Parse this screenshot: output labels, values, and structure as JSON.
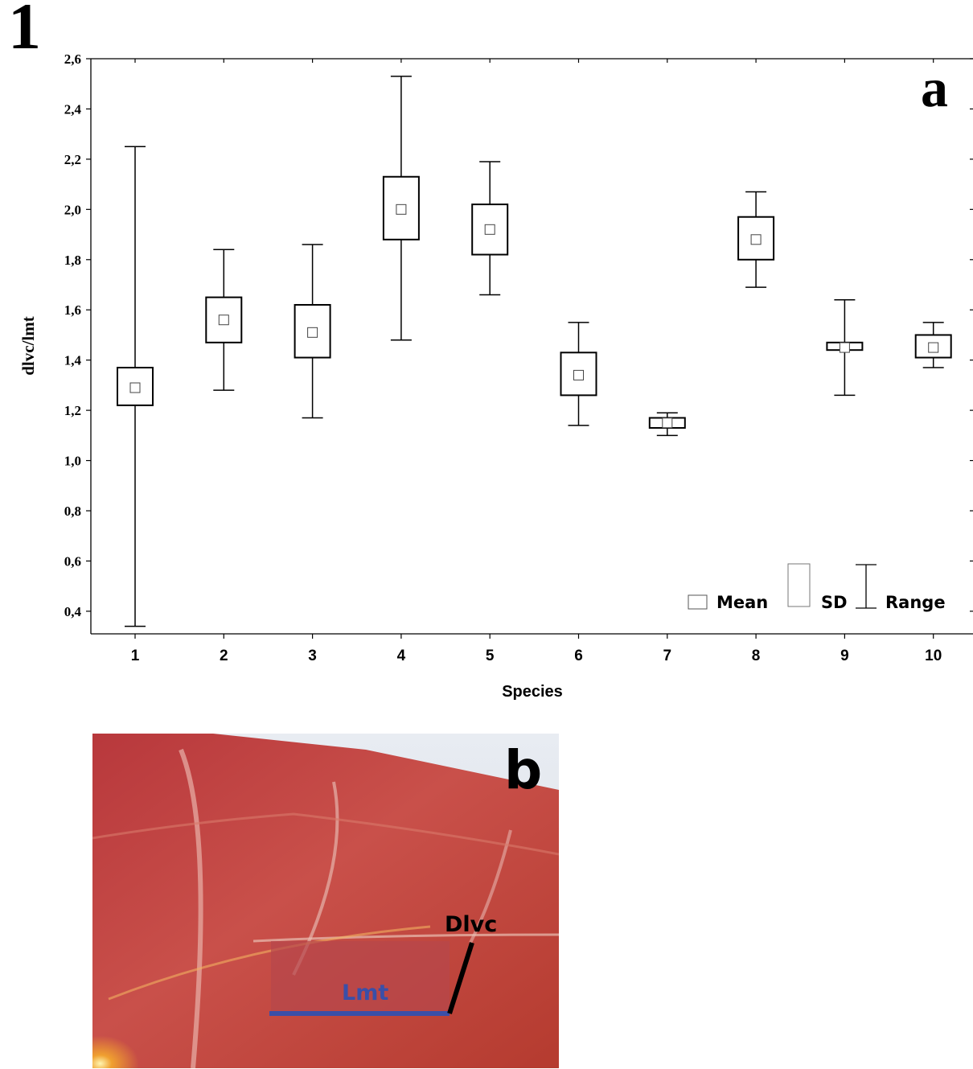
{
  "figure_number": "1",
  "panel_a_label": "a",
  "panel_b_label": "b",
  "chart_data": {
    "type": "box",
    "title": "",
    "xlabel": "Species",
    "ylabel": "dlvc/lmt",
    "categories": [
      "1",
      "2",
      "3",
      "4",
      "5",
      "6",
      "7",
      "8",
      "9",
      "10"
    ],
    "ylim": [
      0.31,
      2.6
    ],
    "yticks": [
      "0,4",
      "0,6",
      "0,8",
      "1,0",
      "1,2",
      "1,4",
      "1,6",
      "1,8",
      "2,0",
      "2,2",
      "2,4",
      "2,6"
    ],
    "ytick_values": [
      0.4,
      0.6,
      0.8,
      1.0,
      1.2,
      1.4,
      1.6,
      1.8,
      2.0,
      2.2,
      2.4,
      2.6
    ],
    "series": [
      {
        "category": "1",
        "mean": 1.29,
        "sd_low": 1.22,
        "sd_high": 1.37,
        "min": 0.34,
        "max": 2.25
      },
      {
        "category": "2",
        "mean": 1.56,
        "sd_low": 1.47,
        "sd_high": 1.65,
        "min": 1.28,
        "max": 1.84
      },
      {
        "category": "3",
        "mean": 1.51,
        "sd_low": 1.41,
        "sd_high": 1.62,
        "min": 1.17,
        "max": 1.86
      },
      {
        "category": "4",
        "mean": 2.0,
        "sd_low": 1.88,
        "sd_high": 2.13,
        "min": 1.48,
        "max": 2.53
      },
      {
        "category": "5",
        "mean": 1.92,
        "sd_low": 1.82,
        "sd_high": 2.02,
        "min": 1.66,
        "max": 2.19
      },
      {
        "category": "6",
        "mean": 1.34,
        "sd_low": 1.26,
        "sd_high": 1.43,
        "min": 1.14,
        "max": 1.55
      },
      {
        "category": "7",
        "mean": 1.15,
        "sd_low": 1.13,
        "sd_high": 1.17,
        "min": 1.1,
        "max": 1.19
      },
      {
        "category": "8",
        "mean": 1.88,
        "sd_low": 1.8,
        "sd_high": 1.97,
        "min": 1.69,
        "max": 2.07
      },
      {
        "category": "9",
        "mean": 1.45,
        "sd_low": 1.44,
        "sd_high": 1.47,
        "min": 1.26,
        "max": 1.64
      },
      {
        "category": "10",
        "mean": 1.45,
        "sd_low": 1.41,
        "sd_high": 1.5,
        "min": 1.37,
        "max": 1.55
      }
    ],
    "legend": {
      "mean": "Mean",
      "sd": "SD",
      "range": "Range",
      "placement": "bottom-right"
    },
    "grid": false
  },
  "photo": {
    "label_dlvc": "Dlvc",
    "label_lmt": "Lmt",
    "colors": {
      "lmt_line": "#3a4fa8",
      "dlvc_line": "#000000",
      "tissue": "#c0413a"
    }
  }
}
